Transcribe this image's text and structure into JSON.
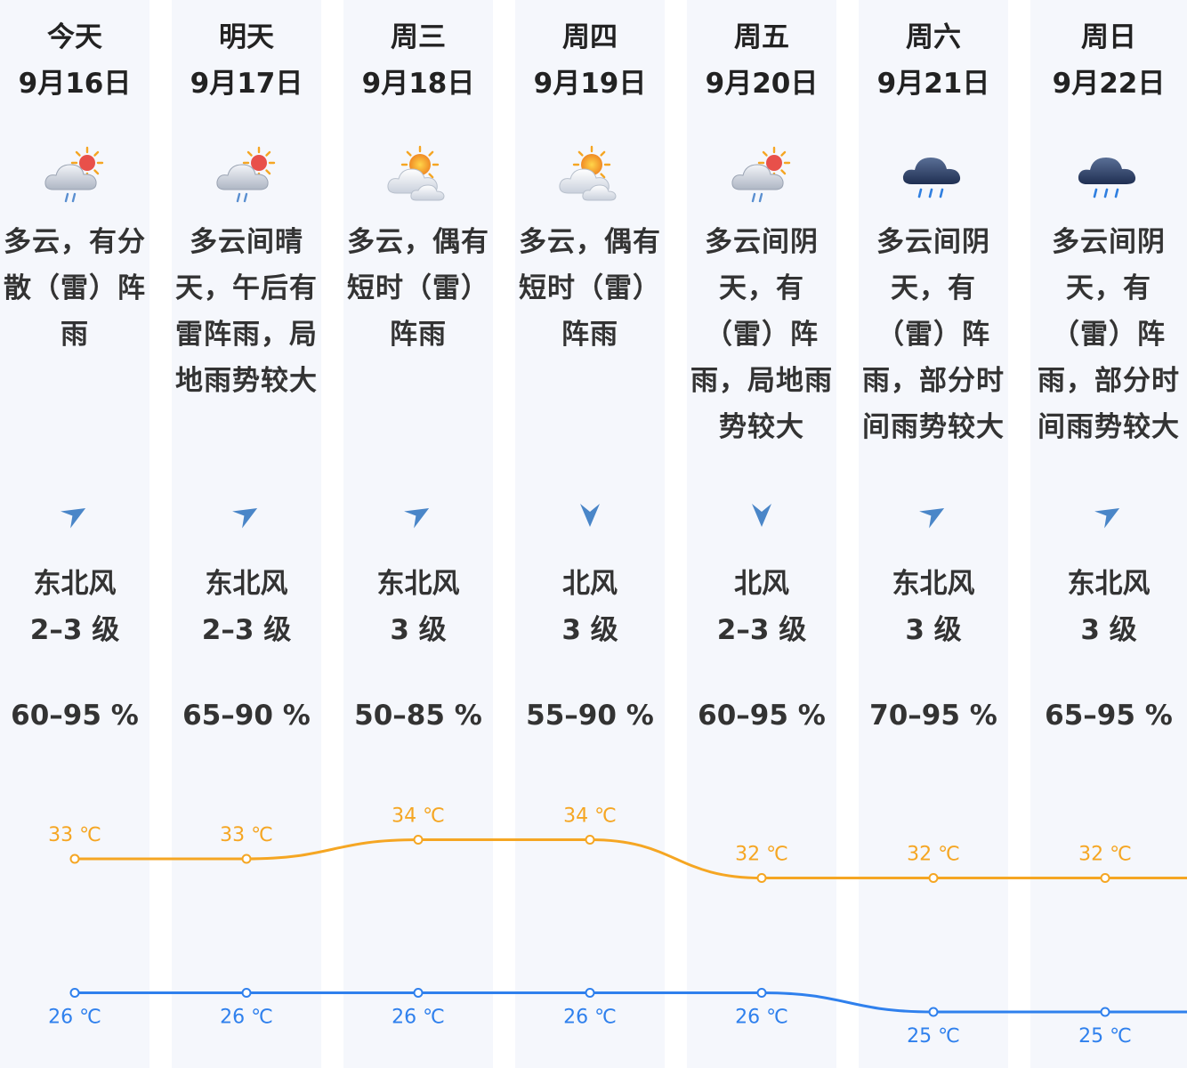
{
  "days": [
    {
      "day": "今天",
      "date": "9月16日",
      "icon": "cloudy-sun-rain-icon",
      "desc": "多云，有分散（雷）阵雨",
      "wind_dir": "东北风",
      "wind_level": "2–3 级",
      "wind_arrow": "northeast-arrow-icon",
      "humidity": "60–95 %"
    },
    {
      "day": "明天",
      "date": "9月17日",
      "icon": "cloudy-sun-rain-icon",
      "desc": "多云间晴天，午后有雷阵雨，局地雨势较大",
      "wind_dir": "东北风",
      "wind_level": "2–3 级",
      "wind_arrow": "northeast-arrow-icon",
      "humidity": "65–90 %"
    },
    {
      "day": "周三",
      "date": "9月18日",
      "icon": "sun-behind-cloud-icon",
      "desc": "多云，偶有短时（雷）阵雨",
      "wind_dir": "东北风",
      "wind_level": "3 级",
      "wind_arrow": "northeast-arrow-icon",
      "humidity": "50–85 %"
    },
    {
      "day": "周四",
      "date": "9月19日",
      "icon": "sun-behind-cloud-icon",
      "desc": "多云，偶有短时（雷）阵雨",
      "wind_dir": "北风",
      "wind_level": "3 级",
      "wind_arrow": "north-arrow-icon",
      "humidity": "55–90 %"
    },
    {
      "day": "周五",
      "date": "9月20日",
      "icon": "cloudy-sun-rain-icon",
      "desc": "多云间阴天，有（雷）阵雨，局地雨势较大",
      "wind_dir": "北风",
      "wind_level": "2–3 级",
      "wind_arrow": "north-arrow-icon",
      "humidity": "60–95 %"
    },
    {
      "day": "周六",
      "date": "9月21日",
      "icon": "dark-cloud-rain-icon",
      "desc": "多云间阴天，有（雷）阵雨，部分时间雨势较大",
      "wind_dir": "东北风",
      "wind_level": "3 级",
      "wind_arrow": "northeast-arrow-icon",
      "humidity": "70–95 %"
    },
    {
      "day": "周日",
      "date": "9月22日",
      "icon": "dark-cloud-rain-icon",
      "desc": "多云间阴天，有（雷）阵雨，部分时间雨势较大",
      "wind_dir": "东北风",
      "wind_level": "3 级",
      "wind_arrow": "northeast-arrow-icon",
      "humidity": "65–95 %"
    }
  ],
  "colors": {
    "high": "#f5a623",
    "low": "#2f80ed",
    "wind_arrow": "#4a86c8",
    "column_bg": "#f5f7fc"
  },
  "chart_data": {
    "type": "line",
    "categories": [
      "9月16日",
      "9月17日",
      "9月18日",
      "9月19日",
      "9月20日",
      "9月21日",
      "9月22日"
    ],
    "unit": "℃",
    "series": [
      {
        "values": [
          33,
          33,
          34,
          34,
          32,
          32,
          32
        ],
        "labels": [
          "33 ℃",
          "33 ℃",
          "34 ℃",
          "34 ℃",
          "32 ℃",
          "32 ℃",
          "32 ℃"
        ]
      },
      {
        "values": [
          26,
          26,
          26,
          26,
          26,
          25,
          25
        ],
        "labels": [
          "26 ℃",
          "26 ℃",
          "26 ℃",
          "26 ℃",
          "26 ℃",
          "25 ℃",
          "25 ℃"
        ]
      }
    ]
  }
}
